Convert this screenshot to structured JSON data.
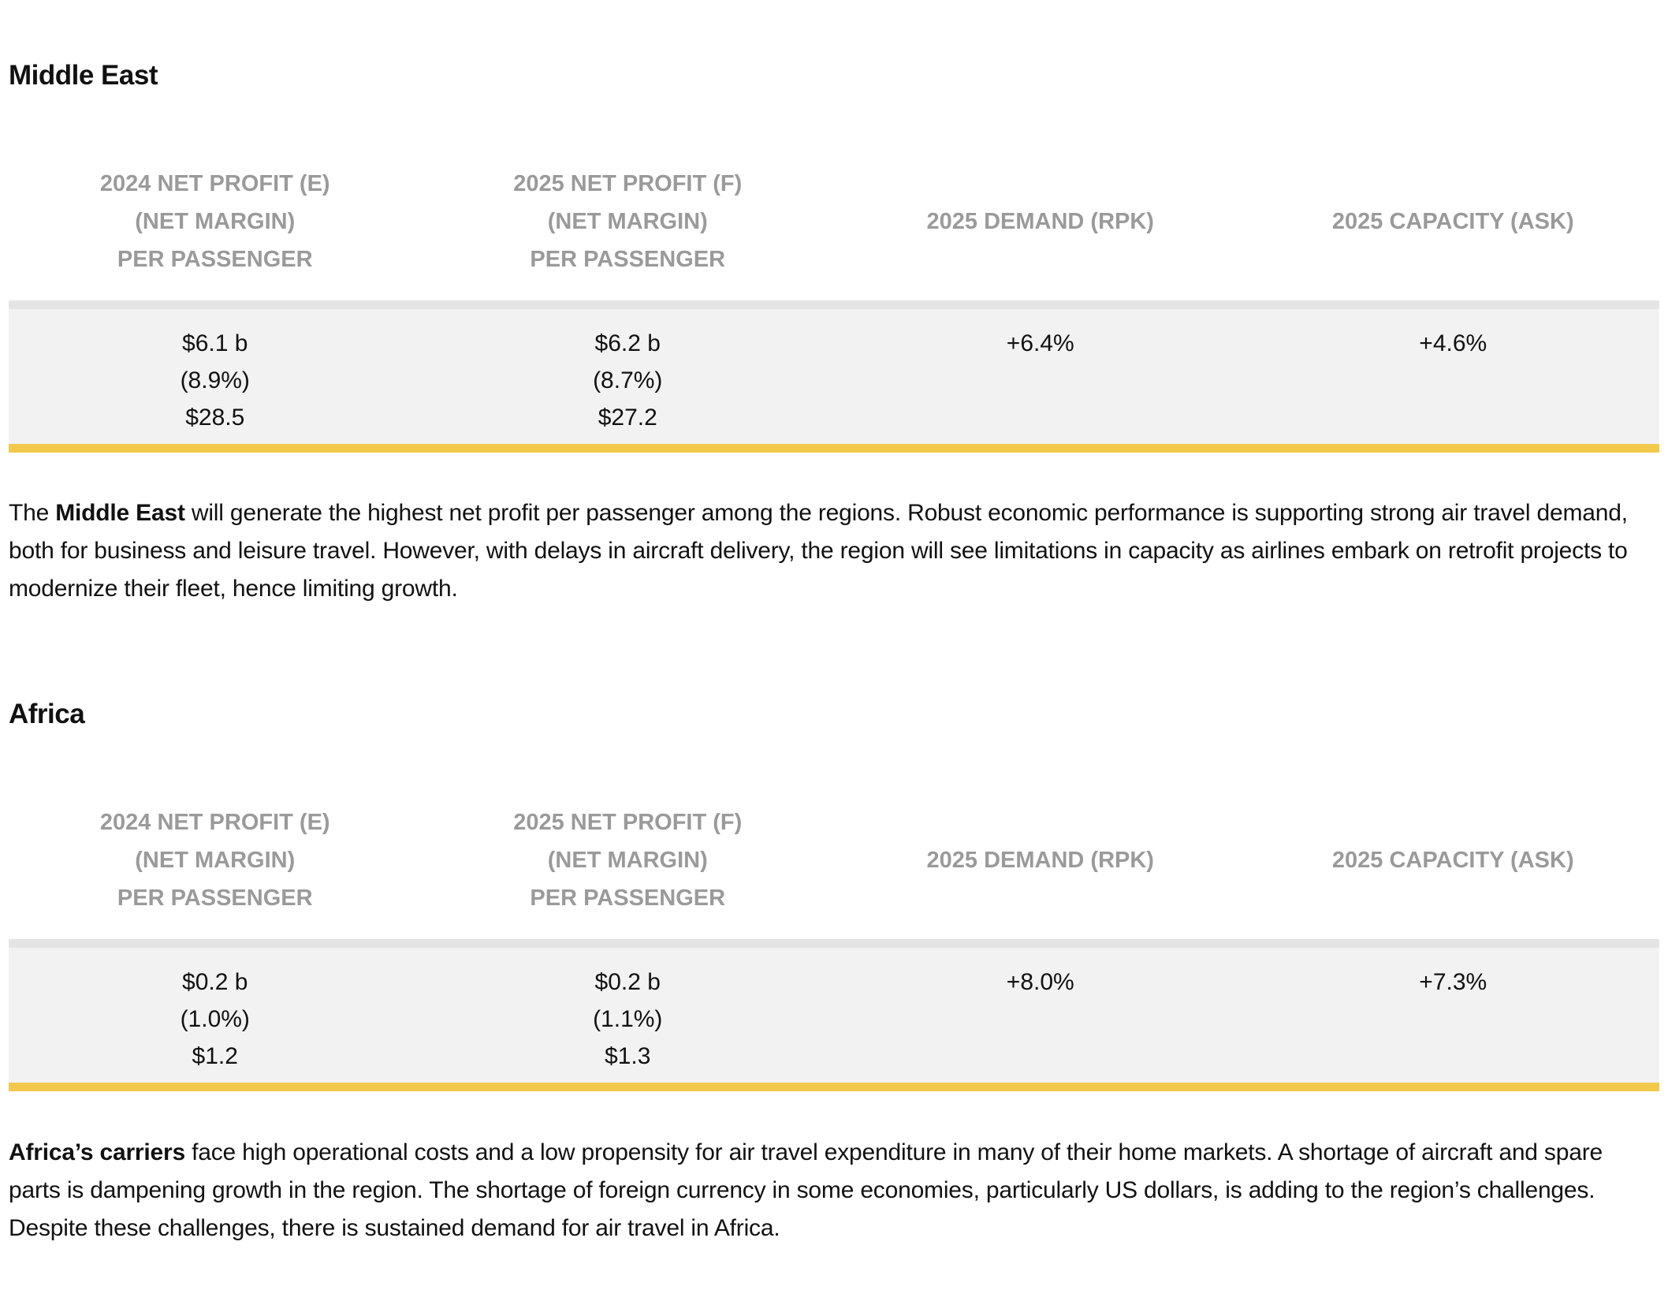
{
  "columns": [
    [
      "2024 NET PROFIT (E)",
      "(NET MARGIN)",
      "PER PASSENGER"
    ],
    [
      "2025 NET PROFIT (F)",
      "(NET MARGIN)",
      "PER PASSENGER"
    ],
    [
      "2025 DEMAND (RPK)"
    ],
    [
      "2025 CAPACITY (ASK)"
    ]
  ],
  "sections": [
    {
      "title": "Middle East",
      "values": [
        [
          "$6.1 b",
          "(8.9%)",
          "$28.5"
        ],
        [
          "$6.2 b",
          "(8.7%)",
          "$27.2"
        ],
        [
          "+6.4%"
        ],
        [
          "+4.6%"
        ]
      ],
      "para_bold": "Middle East",
      "para_pre": "The ",
      "para_post": " will generate the highest net profit per passenger among the regions. Robust economic performance is supporting strong air travel demand, both for business and leisure travel. However, with delays in aircraft delivery, the region will see limitations in capacity as airlines embark on retrofit projects to modernize their fleet, hence limiting growth."
    },
    {
      "title": "Africa",
      "values": [
        [
          "$0.2 b",
          "(1.0%)",
          "$1.2"
        ],
        [
          "$0.2 b",
          "(1.1%)",
          "$1.3"
        ],
        [
          "+8.0%"
        ],
        [
          "+7.3%"
        ]
      ],
      "para_bold": "Africa’s carriers",
      "para_pre": "",
      "para_post": " face high operational costs and a low propensity for air travel expenditure in many of their home markets. A shortage of aircraft and spare parts is dampening growth in the region. The shortage of foreign currency in some economies, particularly US dollars, is adding to the region’s challenges. Despite these challenges, there is sustained demand for air travel in Africa."
    }
  ],
  "colors": {
    "accent": "#f2c94c",
    "header_text": "#9a9a9a",
    "band": "#f2f2f2"
  }
}
